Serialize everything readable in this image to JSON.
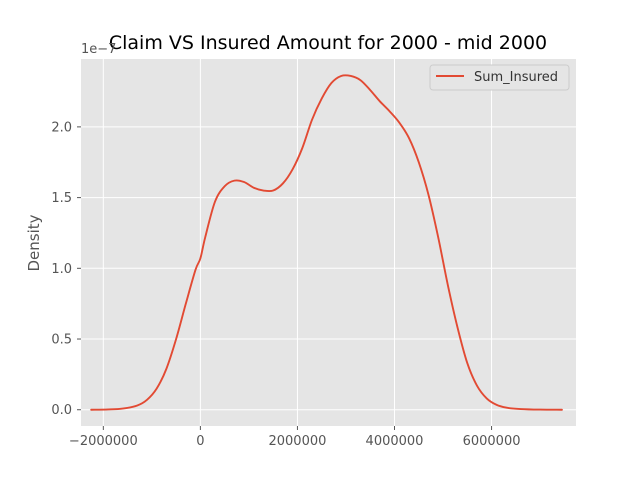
{
  "chart_data": {
    "type": "line",
    "title": "Claim VS Insured Amount for 2000 -  mid 2000",
    "xlabel": "",
    "ylabel": "Density",
    "y_scale_label": "1e−7",
    "xlim": [
      -2460000,
      7740000
    ],
    "ylim": [
      -0.115,
      2.48
    ],
    "xticks": [
      -2000000,
      0,
      2000000,
      4000000,
      6000000
    ],
    "xtick_labels": [
      "−2000000",
      "0",
      "2000000",
      "4000000",
      "6000000"
    ],
    "yticks": [
      0.0,
      0.5,
      1.0,
      1.5,
      2.0
    ],
    "ytick_labels": [
      "0.0",
      "0.5",
      "1.0",
      "1.5",
      "2.0"
    ],
    "grid": true,
    "legend": {
      "position": "top-right",
      "entries": [
        "Sum_Insured"
      ]
    },
    "colors": {
      "line": "#E24A33",
      "background": "#E5E5E5",
      "grid": "#FFFFFF"
    },
    "series": [
      {
        "name": "Sum_Insured",
        "x": [
          -2250000,
          -1900000,
          -1600000,
          -1300000,
          -1100000,
          -900000,
          -700000,
          -500000,
          -300000,
          -100000,
          0,
          100000,
          300000,
          500000,
          700000,
          900000,
          1100000,
          1300000,
          1500000,
          1700000,
          1900000,
          2100000,
          2300000,
          2500000,
          2700000,
          2900000,
          3100000,
          3300000,
          3500000,
          3700000,
          3900000,
          4100000,
          4300000,
          4500000,
          4700000,
          4900000,
          5100000,
          5300000,
          5500000,
          5700000,
          5900000,
          6100000,
          6300000,
          6600000,
          7000000,
          7450000
        ],
        "y": [
          0.0,
          0.002,
          0.008,
          0.03,
          0.07,
          0.15,
          0.29,
          0.5,
          0.75,
          0.99,
          1.07,
          1.22,
          1.47,
          1.58,
          1.62,
          1.61,
          1.57,
          1.55,
          1.55,
          1.6,
          1.7,
          1.85,
          2.05,
          2.2,
          2.31,
          2.36,
          2.36,
          2.33,
          2.26,
          2.18,
          2.11,
          2.03,
          1.92,
          1.75,
          1.52,
          1.22,
          0.88,
          0.58,
          0.33,
          0.17,
          0.08,
          0.035,
          0.015,
          0.005,
          0.001,
          0.0
        ]
      }
    ]
  }
}
